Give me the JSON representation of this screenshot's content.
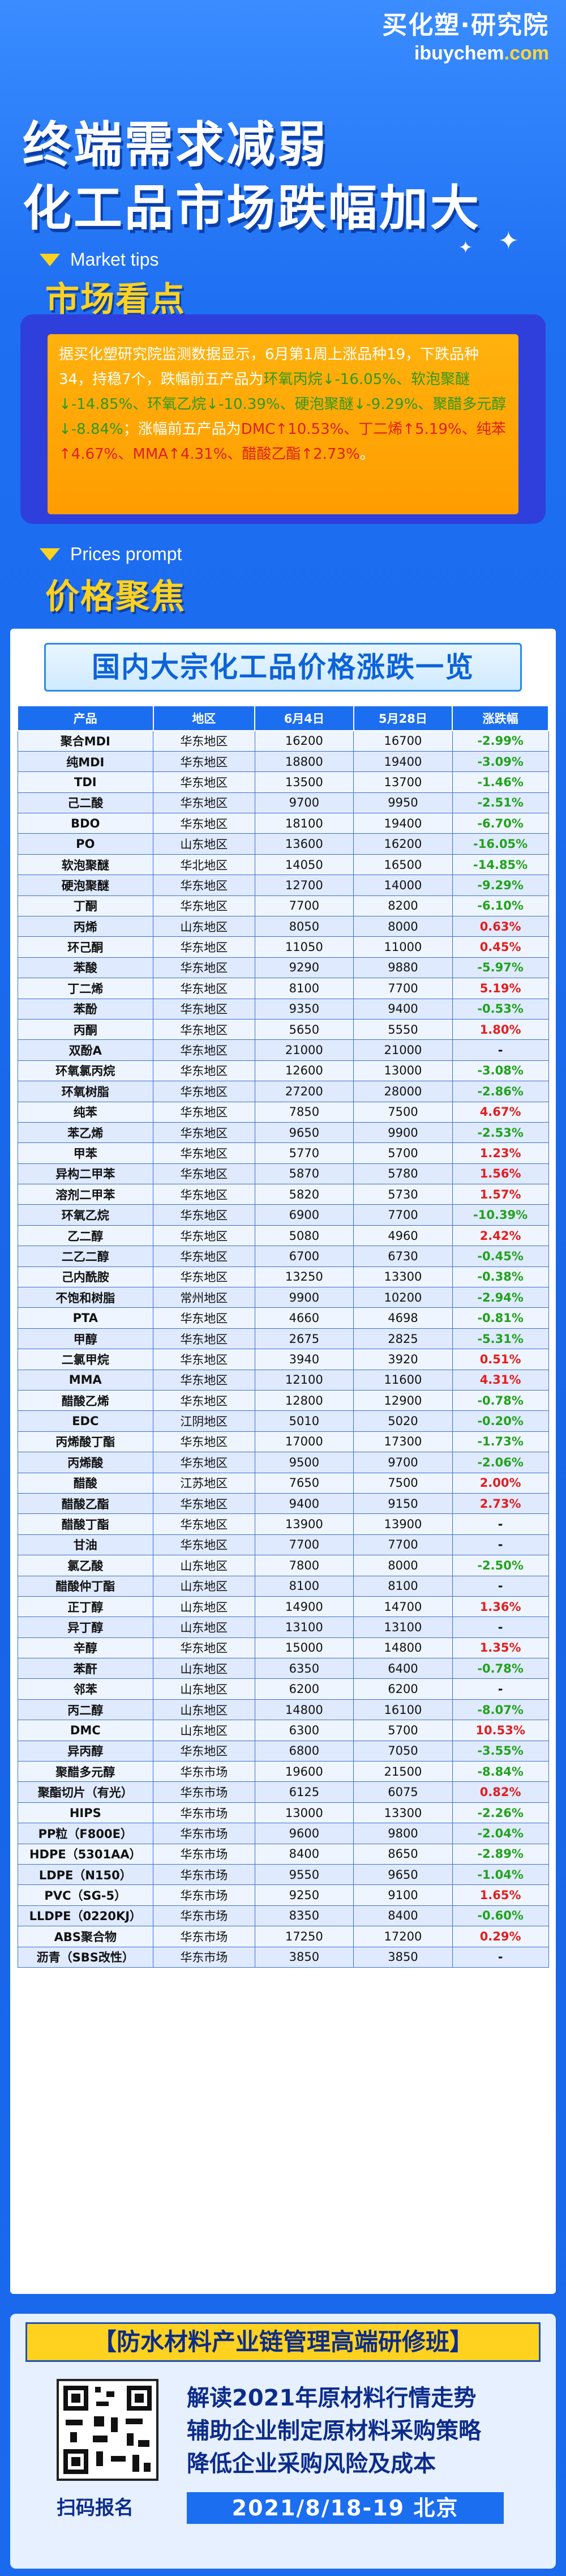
{
  "header": {
    "logo_cn": "买化塑·研究院",
    "logo_en_a": "ibuy",
    "logo_en_b": "chem",
    "logo_en_c": ".com",
    "headline1": "终端需求减弱",
    "headline2": "化工品市场跌幅加大"
  },
  "market": {
    "tip": "Market tips",
    "title": "市场看点",
    "p1": "据买化塑研究院监测数据显示，6月第1周上涨品种19，下跌品种34，持稳7个，跌幅前五产品为",
    "fall": "环氧丙烷↓-16.05%、软泡聚醚↓-14.85%、环氧乙烷↓-10.39%、硬泡聚醚↓-9.29%、聚醋多元醇↓-8.84%",
    "p2": "；涨幅前五产品为",
    "rise": "DMC↑10.53%、丁二烯↑5.19%、纯苯↑4.67%、MMA↑4.31%、醋酸乙酯↑2.73%",
    "p3": "。"
  },
  "prices": {
    "tip": "Prices prompt",
    "title": "价格聚焦",
    "table_title": "国内大宗化工品价格涨跌一览",
    "columns": [
      "产品",
      "地区",
      "6月4日",
      "5月28日",
      "涨跌幅"
    ],
    "rows": [
      [
        "聚合MDI",
        "华东地区",
        "16200",
        "16700",
        "-2.99%"
      ],
      [
        "纯MDI",
        "华东地区",
        "18800",
        "19400",
        "-3.09%"
      ],
      [
        "TDI",
        "华东地区",
        "13500",
        "13700",
        "-1.46%"
      ],
      [
        "己二酸",
        "华东地区",
        "9700",
        "9950",
        "-2.51%"
      ],
      [
        "BDO",
        "华东地区",
        "18100",
        "19400",
        "-6.70%"
      ],
      [
        "PO",
        "山东地区",
        "13600",
        "16200",
        "-16.05%"
      ],
      [
        "软泡聚醚",
        "华北地区",
        "14050",
        "16500",
        "-14.85%"
      ],
      [
        "硬泡聚醚",
        "华东地区",
        "12700",
        "14000",
        "-9.29%"
      ],
      [
        "丁酮",
        "华东地区",
        "7700",
        "8200",
        "-6.10%"
      ],
      [
        "丙烯",
        "山东地区",
        "8050",
        "8000",
        "0.63%"
      ],
      [
        "环己酮",
        "华东地区",
        "11050",
        "11000",
        "0.45%"
      ],
      [
        "苯酸",
        "华东地区",
        "9290",
        "9880",
        "-5.97%"
      ],
      [
        "丁二烯",
        "华东地区",
        "8100",
        "7700",
        "5.19%"
      ],
      [
        "苯酚",
        "华东地区",
        "9350",
        "9400",
        "-0.53%"
      ],
      [
        "丙酮",
        "华东地区",
        "5650",
        "5550",
        "1.80%"
      ],
      [
        "双酚A",
        "华东地区",
        "21000",
        "21000",
        "-"
      ],
      [
        "环氧氯丙烷",
        "华东地区",
        "12600",
        "13000",
        "-3.08%"
      ],
      [
        "环氧树脂",
        "华东地区",
        "27200",
        "28000",
        "-2.86%"
      ],
      [
        "纯苯",
        "华东地区",
        "7850",
        "7500",
        "4.67%"
      ],
      [
        "苯乙烯",
        "华东地区",
        "9650",
        "9900",
        "-2.53%"
      ],
      [
        "甲苯",
        "华东地区",
        "5770",
        "5700",
        "1.23%"
      ],
      [
        "异构二甲苯",
        "华东地区",
        "5870",
        "5780",
        "1.56%"
      ],
      [
        "溶剂二甲苯",
        "华东地区",
        "5820",
        "5730",
        "1.57%"
      ],
      [
        "环氧乙烷",
        "华东地区",
        "6900",
        "7700",
        "-10.39%"
      ],
      [
        "乙二醇",
        "华东地区",
        "5080",
        "4960",
        "2.42%"
      ],
      [
        "二乙二醇",
        "华东地区",
        "6700",
        "6730",
        "-0.45%"
      ],
      [
        "己内酰胺",
        "华东地区",
        "13250",
        "13300",
        "-0.38%"
      ],
      [
        "不饱和树脂",
        "常州地区",
        "9900",
        "10200",
        "-2.94%"
      ],
      [
        "PTA",
        "华东地区",
        "4660",
        "4698",
        "-0.81%"
      ],
      [
        "甲醇",
        "华东地区",
        "2675",
        "2825",
        "-5.31%"
      ],
      [
        "二氯甲烷",
        "华东地区",
        "3940",
        "3920",
        "0.51%"
      ],
      [
        "MMA",
        "华东地区",
        "12100",
        "11600",
        "4.31%"
      ],
      [
        "醋酸乙烯",
        "华东地区",
        "12800",
        "12900",
        "-0.78%"
      ],
      [
        "EDC",
        "江阴地区",
        "5010",
        "5020",
        "-0.20%"
      ],
      [
        "丙烯酸丁酯",
        "华东地区",
        "17000",
        "17300",
        "-1.73%"
      ],
      [
        "丙烯酸",
        "华东地区",
        "9500",
        "9700",
        "-2.06%"
      ],
      [
        "醋酸",
        "江苏地区",
        "7650",
        "7500",
        "2.00%"
      ],
      [
        "醋酸乙酯",
        "华东地区",
        "9400",
        "9150",
        "2.73%"
      ],
      [
        "醋酸丁酯",
        "华东地区",
        "13900",
        "13900",
        "-"
      ],
      [
        "甘油",
        "华东地区",
        "7700",
        "7700",
        "-"
      ],
      [
        "氯乙酸",
        "山东地区",
        "7800",
        "8000",
        "-2.50%"
      ],
      [
        "醋酸仲丁酯",
        "山东地区",
        "8100",
        "8100",
        "-"
      ],
      [
        "正丁醇",
        "山东地区",
        "14900",
        "14700",
        "1.36%"
      ],
      [
        "异丁醇",
        "山东地区",
        "13100",
        "13100",
        "-"
      ],
      [
        "辛醇",
        "华东地区",
        "15000",
        "14800",
        "1.35%"
      ],
      [
        "苯酐",
        "山东地区",
        "6350",
        "6400",
        "-0.78%"
      ],
      [
        "邻苯",
        "山东地区",
        "6200",
        "6200",
        "-"
      ],
      [
        "丙二醇",
        "山东地区",
        "14800",
        "16100",
        "-8.07%"
      ],
      [
        "DMC",
        "山东地区",
        "6300",
        "5700",
        "10.53%"
      ],
      [
        "异丙醇",
        "华东地区",
        "6800",
        "7050",
        "-3.55%"
      ],
      [
        "聚醋多元醇",
        "华东市场",
        "19600",
        "21500",
        "-8.84%"
      ],
      [
        "聚酯切片（有光）",
        "华东市场",
        "6125",
        "6075",
        "0.82%"
      ],
      [
        "HIPS",
        "华东市场",
        "13000",
        "13300",
        "-2.26%"
      ],
      [
        "PP粒（F800E）",
        "华东市场",
        "9600",
        "9800",
        "-2.04%"
      ],
      [
        "HDPE（5301AA）",
        "华东市场",
        "8400",
        "8650",
        "-2.89%"
      ],
      [
        "LDPE（N150）",
        "华东市场",
        "9550",
        "9650",
        "-1.04%"
      ],
      [
        "PVC（SG-5）",
        "华东市场",
        "9250",
        "9100",
        "1.65%"
      ],
      [
        "LLDPE（0220KJ）",
        "华东市场",
        "8350",
        "8400",
        "-0.60%"
      ],
      [
        "ABS聚合物",
        "华东市场",
        "17250",
        "17200",
        "0.29%"
      ],
      [
        "沥青（SBS改性）",
        "华东市场",
        "3850",
        "3850",
        "-"
      ]
    ]
  },
  "course": {
    "title": "【防水材料产业链管理高端研修班】",
    "p1": "解读2021年原材料行情走势",
    "p2": "辅助企业制定原材料采购策略",
    "p3": "降低企业采购风险及成本",
    "scan": "扫码报名",
    "date": "2021/8/18-19  北京"
  }
}
